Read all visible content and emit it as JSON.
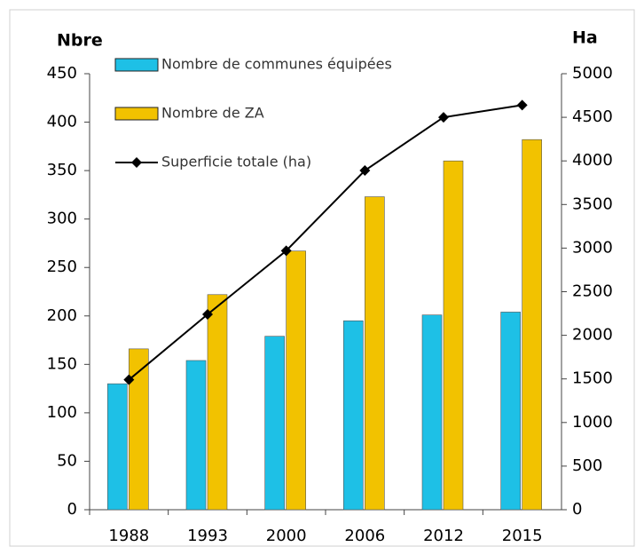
{
  "chart_data": {
    "type": "bar",
    "categories": [
      "1988",
      "1993",
      "2000",
      "2006",
      "2012",
      "2015"
    ],
    "y_label": "Nbre",
    "y2_label": "Ha",
    "series": [
      {
        "name": "Nombre de communes équipées",
        "color": "#1ec0e6",
        "values": [
          130,
          154,
          179,
          195,
          201,
          204
        ]
      },
      {
        "name": "Nombre de ZA",
        "color": "#f2c200",
        "values": [
          166,
          222,
          267,
          323,
          360,
          382
        ]
      },
      {
        "name": "Superficie totale (ha)",
        "color": "#000000",
        "type": "line",
        "axis": "y2",
        "values": [
          1490,
          2240,
          2970,
          3890,
          4500,
          4640
        ]
      }
    ],
    "ylim": [
      0,
      450
    ],
    "yticks": [
      0,
      50,
      100,
      150,
      200,
      250,
      300,
      350,
      400,
      450
    ],
    "y2lim": [
      0,
      5000
    ],
    "y2ticks": [
      0,
      500,
      1000,
      1500,
      2000,
      2500,
      3000,
      3500,
      4000,
      4500,
      5000
    ],
    "legend": "top-left"
  }
}
